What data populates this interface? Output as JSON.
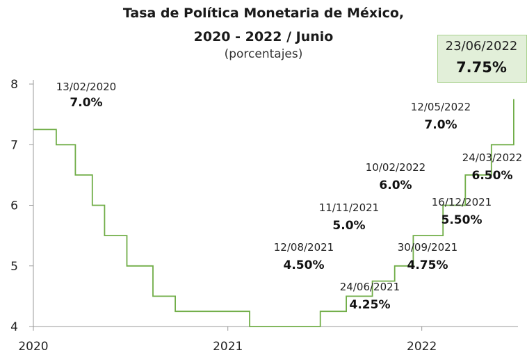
{
  "title": {
    "line1": "Tasa de Política Monetaria de México,",
    "line2": "2020 - 2022 / Junio",
    "unit": "(porcentajes)"
  },
  "chart_data": {
    "type": "line",
    "step": true,
    "series_color": "#70ad47",
    "highlight_color": "#e2efd9",
    "x_ticks": [
      "2020",
      "2021",
      "2022"
    ],
    "y_ticks": [
      4,
      5,
      6,
      7,
      8
    ],
    "ylim": [
      4,
      8
    ],
    "xlim": [
      "2020-01-01",
      "2022-07-01"
    ],
    "grid": false,
    "series": [
      {
        "points": [
          {
            "date": "2020-01-01",
            "value": 7.25
          },
          {
            "date": "2020-02-13",
            "value": 7.0
          },
          {
            "date": "2020-03-20",
            "value": 6.5
          },
          {
            "date": "2020-04-21",
            "value": 6.0
          },
          {
            "date": "2020-05-14",
            "value": 5.5
          },
          {
            "date": "2020-06-25",
            "value": 5.0
          },
          {
            "date": "2020-08-13",
            "value": 4.5
          },
          {
            "date": "2020-09-24",
            "value": 4.25
          },
          {
            "date": "2021-02-11",
            "value": 4.0
          },
          {
            "date": "2021-06-24",
            "value": 4.25
          },
          {
            "date": "2021-08-12",
            "value": 4.5
          },
          {
            "date": "2021-09-30",
            "value": 4.75
          },
          {
            "date": "2021-11-11",
            "value": 5.0
          },
          {
            "date": "2021-12-16",
            "value": 5.5
          },
          {
            "date": "2022-02-10",
            "value": 6.0
          },
          {
            "date": "2022-03-24",
            "value": 6.5
          },
          {
            "date": "2022-05-12",
            "value": 7.0
          },
          {
            "date": "2022-06-23",
            "value": 7.75
          }
        ]
      }
    ],
    "annotations": [
      {
        "date_label": "13/02/2020",
        "value_label": "7.0%"
      },
      {
        "date_label": "12/08/2021",
        "value_label": "4.50%"
      },
      {
        "date_label": "24/06/2021",
        "value_label": "4.25%"
      },
      {
        "date_label": "11/11/2021",
        "value_label": "5.0%"
      },
      {
        "date_label": "30/09/2021",
        "value_label": "4.75%"
      },
      {
        "date_label": "10/02/2022",
        "value_label": "6.0%"
      },
      {
        "date_label": "16/12/2021",
        "value_label": "5.50%"
      },
      {
        "date_label": "12/05/2022",
        "value_label": "7.0%"
      },
      {
        "date_label": "24/03/2022",
        "value_label": "6.50%"
      }
    ],
    "highlight": {
      "date_label": "23/06/2022",
      "value_label": "7.75%"
    }
  }
}
